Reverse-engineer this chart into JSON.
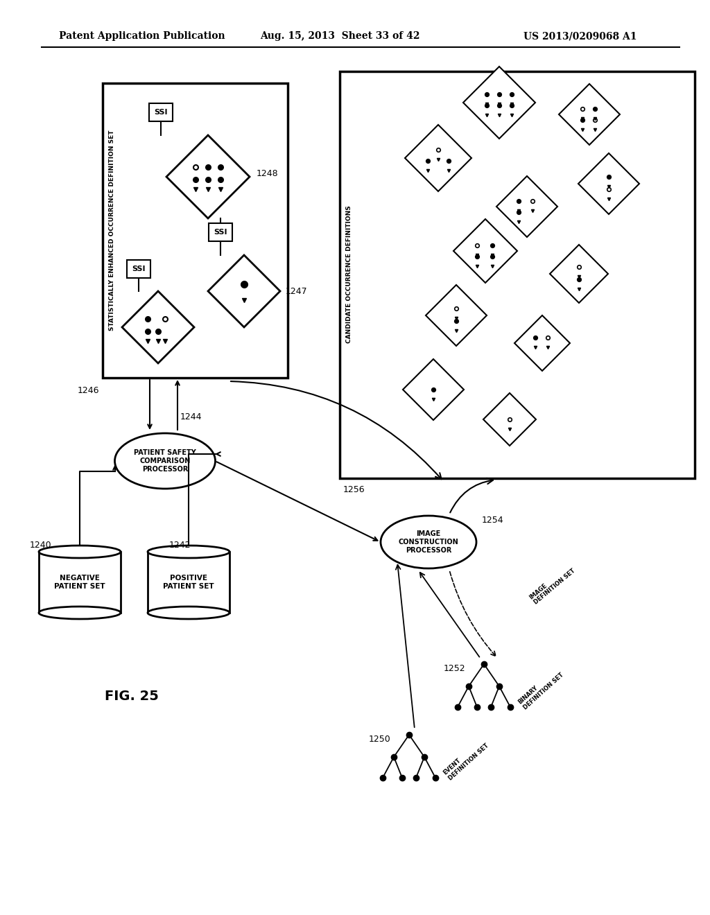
{
  "header_left": "Patent Application Publication",
  "header_mid": "Aug. 15, 2013  Sheet 33 of 42",
  "header_right": "US 2013/0209068 A1",
  "fig_label": "FIG. 25",
  "bg_color": "#ffffff",
  "label_1246": "1246",
  "label_1247": "1247",
  "label_1248": "1248",
  "label_1240": "1240",
  "label_1242": "1242",
  "label_1244": "1244",
  "label_1250": "1250",
  "label_1252": "1252",
  "label_1254": "1254",
  "label_1256": "1256",
  "neg_patient": "NEGATIVE\nPATIENT SET",
  "pos_patient": "POSITIVE\nPATIENT SET",
  "safety_comp": "PATIENT SAFETY\nCOMPARISON\nPROCESSOR",
  "img_const": "IMAGE\nCONSTRUCTION\nPROCESSOR",
  "stat_enh": "STATISTICALLY ENHANCED OCCURRENCE DEFINITION SET",
  "cand_occ": "CANDIDATE OCCURRENCE DEFINITIONS",
  "event_def": "EVENT\nDEFINITION SET",
  "binary_def": "BINARY\nDEFINITION SET",
  "image_def": "IMAGE\nDEFINITION SET"
}
